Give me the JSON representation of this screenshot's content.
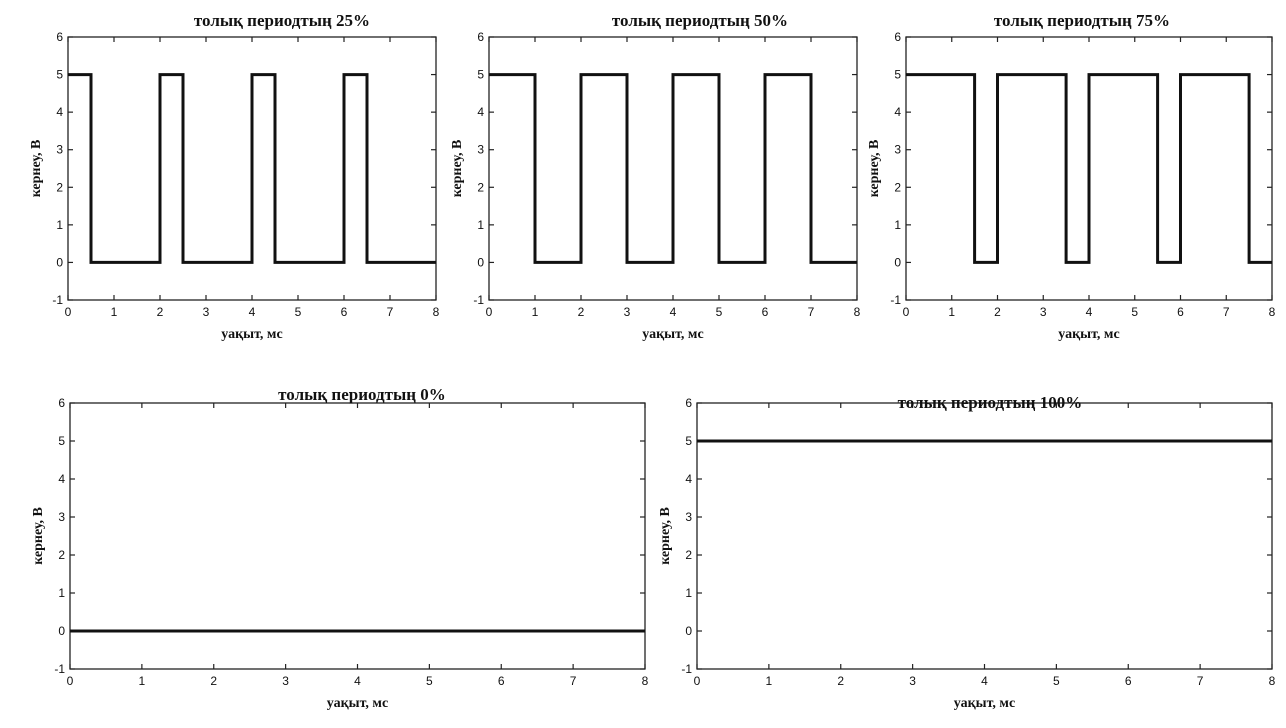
{
  "chart_data": [
    {
      "type": "line",
      "title": "толық периодтың 25%",
      "xlabel": "уақыт, мс",
      "ylabel": "кернеу, В",
      "xlim": [
        0,
        8
      ],
      "ylim": [
        -1,
        6
      ],
      "xticks": [
        0,
        1,
        2,
        3,
        4,
        5,
        6,
        7,
        8
      ],
      "yticks": [
        -1,
        0,
        1,
        2,
        3,
        4,
        5,
        6
      ],
      "series": [
        {
          "x": [
            0,
            0.5,
            0.5,
            2,
            2,
            2.5,
            2.5,
            4,
            4,
            4.5,
            4.5,
            6,
            6,
            6.5,
            6.5,
            8
          ],
          "y": [
            5,
            5,
            0,
            0,
            5,
            5,
            0,
            0,
            5,
            5,
            0,
            0,
            5,
            5,
            0,
            0
          ]
        }
      ]
    },
    {
      "type": "line",
      "title": "толық периодтың 50%",
      "xlabel": "уақыт, мс",
      "ylabel": "кернеу, В",
      "xlim": [
        0,
        8
      ],
      "ylim": [
        -1,
        6
      ],
      "xticks": [
        0,
        1,
        2,
        3,
        4,
        5,
        6,
        7,
        8
      ],
      "yticks": [
        -1,
        0,
        1,
        2,
        3,
        4,
        5,
        6
      ],
      "series": [
        {
          "x": [
            0,
            1,
            1,
            2,
            2,
            3,
            3,
            4,
            4,
            5,
            5,
            6,
            6,
            7,
            7,
            8
          ],
          "y": [
            5,
            5,
            0,
            0,
            5,
            5,
            0,
            0,
            5,
            5,
            0,
            0,
            5,
            5,
            0,
            0
          ]
        }
      ]
    },
    {
      "type": "line",
      "title": "толық периодтың 75%",
      "xlabel": "уақыт, мс",
      "ylabel": "кернеу, В",
      "xlim": [
        0,
        8
      ],
      "ylim": [
        -1,
        6
      ],
      "xticks": [
        0,
        1,
        2,
        3,
        4,
        5,
        6,
        7,
        8
      ],
      "yticks": [
        -1,
        0,
        1,
        2,
        3,
        4,
        5,
        6
      ],
      "series": [
        {
          "x": [
            0,
            1.5,
            1.5,
            2,
            2,
            3.5,
            3.5,
            4,
            4,
            5.5,
            5.5,
            6,
            6,
            7.5,
            7.5,
            8
          ],
          "y": [
            5,
            5,
            0,
            0,
            5,
            5,
            0,
            0,
            5,
            5,
            0,
            0,
            5,
            5,
            0,
            0
          ]
        }
      ]
    },
    {
      "type": "line",
      "title": "толық периодтың 0%",
      "xlabel": "уақыт, мс",
      "ylabel": "кернеу, В",
      "xlim": [
        0,
        8
      ],
      "ylim": [
        -1,
        6
      ],
      "xticks": [
        0,
        1,
        2,
        3,
        4,
        5,
        6,
        7,
        8
      ],
      "yticks": [
        -1,
        0,
        1,
        2,
        3,
        4,
        5,
        6
      ],
      "series": [
        {
          "x": [
            0,
            8
          ],
          "y": [
            0,
            0
          ]
        }
      ]
    },
    {
      "type": "line",
      "title": "толық периодтың 100%",
      "xlabel": "уақыт, мс",
      "ylabel": "кернеу, В",
      "xlim": [
        0,
        8
      ],
      "ylim": [
        -1,
        6
      ],
      "xticks": [
        0,
        1,
        2,
        3,
        4,
        5,
        6,
        7,
        8
      ],
      "yticks": [
        -1,
        0,
        1,
        2,
        3,
        4,
        5,
        6
      ],
      "series": [
        {
          "x": [
            0,
            8
          ],
          "y": [
            5,
            5
          ]
        }
      ]
    }
  ]
}
